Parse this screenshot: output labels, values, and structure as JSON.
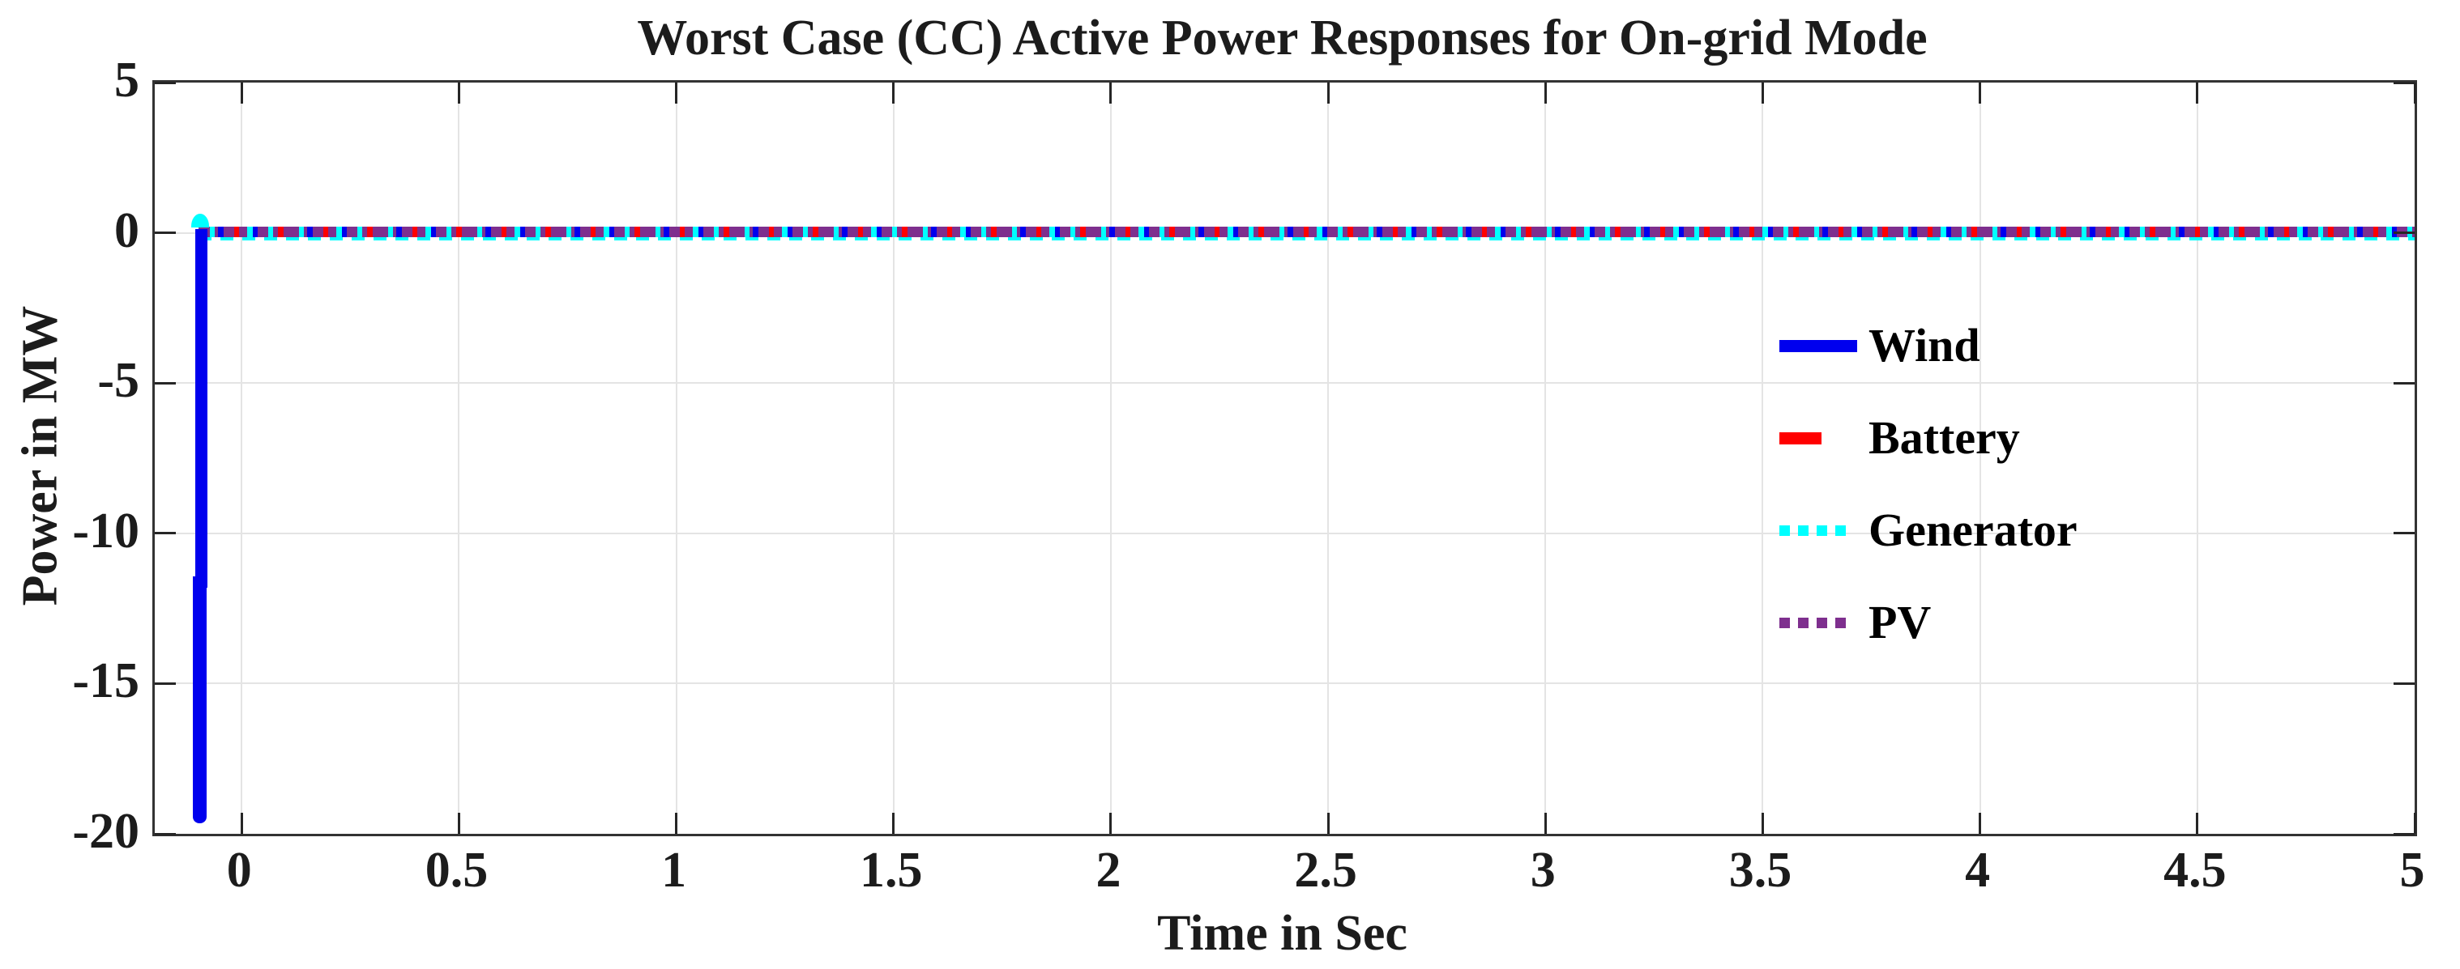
{
  "title": "Worst Case (CC) Active Power Responses for On-grid Mode",
  "axes": {
    "xlabel": "Time in Sec",
    "ylabel": "Power in MW",
    "xtick_labels": [
      "0",
      "0.5",
      "1",
      "1.5",
      "2",
      "2.5",
      "3",
      "3.5",
      "4",
      "4.5",
      "5"
    ],
    "ytick_labels": [
      "5",
      "0",
      "-5",
      "-10",
      "-15",
      "-20"
    ]
  },
  "legend": {
    "items": [
      {
        "label": "Wind",
        "color": "#0000EE",
        "style": "solid"
      },
      {
        "label": "Battery",
        "color": "#FF0000",
        "style": "dashed"
      },
      {
        "label": "Generator",
        "color": "#00FFFF",
        "style": "dotted"
      },
      {
        "label": "PV",
        "color": "#7E2F8E",
        "style": "dotted"
      }
    ],
    "box": false,
    "position": "right-center"
  },
  "colors": {
    "wind": "#0000EE",
    "battery": "#FF0000",
    "generator": "#00FFFF",
    "pv": "#7E2F8E",
    "grid": "#E4E4E4",
    "axis": "#333333",
    "text": "#1C1C1C",
    "background": "#FFFFFF"
  },
  "chart_data": {
    "type": "line",
    "title": "Worst Case (CC) Active Power Responses for On-grid Mode",
    "xlabel": "Time in Sec",
    "ylabel": "Power in MW",
    "xlim": [
      -0.2,
      5
    ],
    "ylim": [
      -20,
      5
    ],
    "xticks": [
      0,
      0.5,
      1,
      1.5,
      2,
      2.5,
      3,
      3.5,
      4,
      4.5,
      5
    ],
    "yticks": [
      5,
      0,
      -5,
      -10,
      -15,
      -20
    ],
    "grid": true,
    "legend_position": "right-center-no-box",
    "series": [
      {
        "name": "Wind",
        "color": "#0000EE",
        "style": "solid",
        "points": [
          [
            -0.1,
            0
          ],
          [
            -0.105,
            -19.5
          ],
          [
            -0.098,
            -12
          ],
          [
            -0.09,
            0
          ],
          [
            5,
            0
          ]
        ],
        "note": "sharp negative spike to about -19.5 MW at t = -0.1 s, then flat at 0 MW"
      },
      {
        "name": "Battery",
        "color": "#FF0000",
        "style": "dashed",
        "points": [
          [
            -0.1,
            0
          ],
          [
            5,
            0
          ]
        ],
        "note": "flat at 0 MW"
      },
      {
        "name": "Generator",
        "color": "#00FFFF",
        "style": "dotted",
        "points": [
          [
            -0.1,
            0.4
          ],
          [
            -0.08,
            0
          ],
          [
            5,
            0
          ]
        ],
        "note": "small positive bump about +0.4 MW at t = -0.1 s, then flat at 0 MW"
      },
      {
        "name": "PV",
        "color": "#7E2F8E",
        "style": "dotted",
        "points": [
          [
            -0.1,
            0
          ],
          [
            5,
            0
          ]
        ],
        "note": "flat at 0 MW"
      }
    ]
  }
}
